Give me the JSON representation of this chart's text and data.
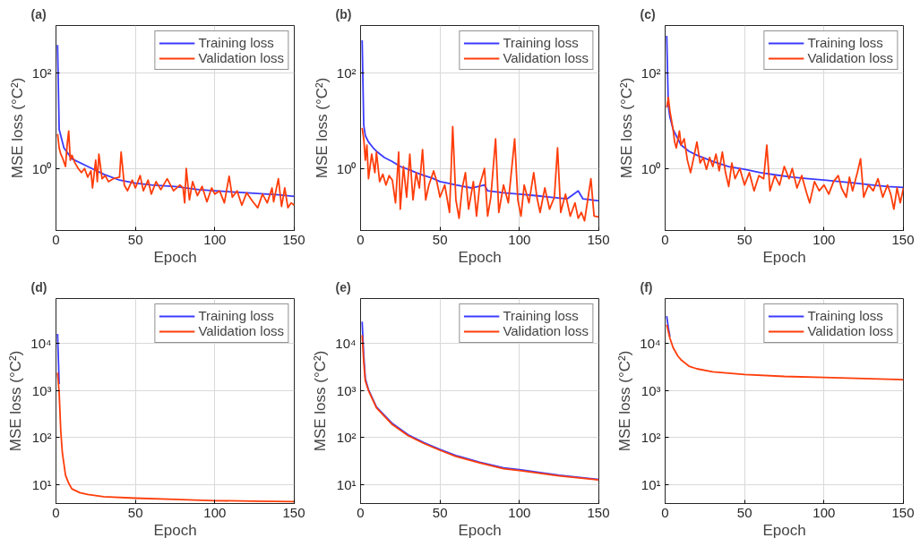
{
  "chart_data": [
    {
      "type": "line",
      "title": "(a)",
      "xlabel": "Epoch",
      "ylabel": "MSE loss (°C²)",
      "xlim": [
        0,
        150
      ],
      "xticks": [
        0,
        50,
        100,
        150
      ],
      "ylim": [
        0.05,
        1000
      ],
      "yticks": [
        {
          "value": 1,
          "label": "10⁰"
        },
        {
          "value": 100,
          "label": "10²"
        }
      ],
      "log": true,
      "grid": true,
      "legend": "top right",
      "series": [
        {
          "name": "Training loss",
          "color": "#3b3bff",
          "x": [
            1,
            2,
            5,
            10,
            20,
            30,
            40,
            50,
            60,
            75,
            90,
            100,
            120,
            140,
            150
          ],
          "values": [
            390,
            6.6,
            2.7,
            1.6,
            1.1,
            0.76,
            0.57,
            0.49,
            0.45,
            0.42,
            0.36,
            0.34,
            0.31,
            0.28,
            0.26
          ]
        },
        {
          "name": "Validation loss",
          "color": "#ff3d0a",
          "x": [
            1,
            2,
            3,
            4,
            6,
            7,
            8,
            9,
            10,
            12,
            14,
            16,
            18,
            20,
            22,
            23,
            25,
            26,
            27,
            29,
            31,
            33,
            36,
            40,
            41,
            43,
            45,
            48,
            50,
            53,
            55,
            58,
            60,
            63,
            66,
            70,
            74,
            78,
            80,
            81,
            82,
            84,
            86,
            89,
            92,
            95,
            98,
            100,
            103,
            106,
            108,
            109,
            111,
            114,
            117,
            120,
            124,
            127,
            130,
            133,
            136,
            137,
            140,
            142,
            144,
            146,
            148,
            150
          ],
          "values": [
            5.3,
            2.7,
            2.0,
            1.7,
            1.1,
            3.1,
            6.1,
            1.5,
            1.9,
            1.3,
            1.0,
            0.82,
            1.0,
            0.66,
            0.89,
            0.39,
            1.5,
            0.53,
            2.0,
            0.61,
            0.71,
            0.53,
            0.61,
            0.66,
            2.2,
            0.45,
            0.34,
            0.57,
            0.39,
            0.71,
            0.34,
            0.57,
            0.29,
            0.53,
            0.36,
            0.61,
            0.34,
            0.45,
            0.39,
            0.19,
            1.0,
            0.22,
            0.53,
            0.27,
            0.42,
            0.2,
            0.39,
            0.29,
            0.34,
            0.19,
            0.45,
            0.69,
            0.25,
            0.34,
            0.17,
            0.31,
            0.2,
            0.15,
            0.29,
            0.19,
            0.39,
            0.2,
            0.61,
            0.16,
            0.39,
            0.15,
            0.19,
            0.17
          ]
        }
      ]
    },
    {
      "type": "line",
      "title": "(b)",
      "xlabel": "Epoch",
      "ylabel": "MSE loss (°C²)",
      "xlim": [
        0,
        150
      ],
      "xticks": [
        0,
        50,
        100,
        150
      ],
      "ylim": [
        0.05,
        1000
      ],
      "yticks": [
        {
          "value": 1,
          "label": "10⁰"
        },
        {
          "value": 100,
          "label": "10²"
        }
      ],
      "log": true,
      "grid": true,
      "legend": "top right",
      "series": [
        {
          "name": "Training loss",
          "color": "#3b3bff",
          "x": [
            1,
            2,
            3,
            5,
            8,
            10,
            15,
            20,
            25,
            30,
            35,
            40,
            45,
            50,
            55,
            60,
            70,
            78,
            80,
            90,
            100,
            110,
            120,
            130,
            137,
            140,
            150
          ],
          "values": [
            490,
            8.2,
            4.9,
            3.6,
            2.7,
            2.3,
            1.7,
            1.4,
            1.1,
            0.96,
            0.82,
            0.71,
            0.63,
            0.53,
            0.49,
            0.45,
            0.39,
            0.45,
            0.34,
            0.31,
            0.29,
            0.27,
            0.25,
            0.23,
            0.34,
            0.23,
            0.21
          ]
        },
        {
          "name": "Validation loss",
          "color": "#ff3d0a",
          "x": [
            1,
            2,
            3,
            4,
            5,
            7,
            9,
            10,
            12,
            14,
            16,
            18,
            20,
            22,
            24,
            25,
            27,
            29,
            31,
            33,
            35,
            37,
            39,
            41,
            43,
            46,
            48,
            50,
            53,
            56,
            58,
            60,
            62,
            64,
            66,
            68,
            71,
            73,
            75,
            78,
            80,
            82,
            85,
            87,
            90,
            93,
            97,
            99,
            101,
            103,
            106,
            109,
            111,
            113,
            116,
            119,
            122,
            124,
            126,
            129,
            132,
            135,
            137,
            139,
            141,
            143,
            145,
            147,
            150
          ],
          "values": [
            7.1,
            4.2,
            1.5,
            3.1,
            0.61,
            2.0,
            0.82,
            2.2,
            0.53,
            0.76,
            0.45,
            0.71,
            0.57,
            0.19,
            2.2,
            0.14,
            1.1,
            0.25,
            2.0,
            0.22,
            0.82,
            0.39,
            2.5,
            0.22,
            0.45,
            0.89,
            0.53,
            0.25,
            0.45,
            0.12,
            7.6,
            0.22,
            0.09,
            0.39,
            0.82,
            0.14,
            0.53,
            0.1,
            0.45,
            1.0,
            0.1,
            0.25,
            4.2,
            0.12,
            0.45,
            0.19,
            4.2,
            0.22,
            0.1,
            0.45,
            0.19,
            0.82,
            0.25,
            0.12,
            0.39,
            0.14,
            0.25,
            2.7,
            0.12,
            0.29,
            0.1,
            0.19,
            0.09,
            0.12,
            0.08,
            0.22,
            0.61,
            0.1,
            0.096
          ]
        }
      ]
    },
    {
      "type": "line",
      "title": "(c)",
      "xlabel": "Epoch",
      "ylabel": "MSE loss (°C²)",
      "xlim": [
        0,
        150
      ],
      "xticks": [
        0,
        50,
        100,
        150
      ],
      "ylim": [
        0.05,
        1000
      ],
      "yticks": [
        {
          "value": 1,
          "label": "10⁰"
        },
        {
          "value": 100,
          "label": "10²"
        }
      ],
      "log": true,
      "grid": true,
      "legend": "top right",
      "series": [
        {
          "name": "Training loss",
          "color": "#3b3bff",
          "x": [
            1,
            2,
            3,
            5,
            8,
            10,
            15,
            20,
            30,
            40,
            50,
            60,
            70,
            80,
            90,
            100,
            110,
            120,
            130,
            140,
            150
          ],
          "values": [
            610,
            21,
            12,
            6.6,
            4.2,
            3.1,
            2.3,
            1.9,
            1.4,
            1.1,
            0.96,
            0.82,
            0.73,
            0.66,
            0.61,
            0.57,
            0.53,
            0.49,
            0.45,
            0.42,
            0.4
          ]
        },
        {
          "name": "Validation loss",
          "color": "#ff3d0a",
          "x": [
            1,
            2,
            3,
            5,
            6,
            7,
            9,
            10,
            12,
            14,
            16,
            18,
            20,
            22,
            24,
            26,
            28,
            30,
            32,
            34,
            36,
            38,
            40,
            42,
            44,
            47,
            50,
            53,
            56,
            59,
            62,
            64,
            66,
            69,
            72,
            75,
            78,
            80,
            83,
            86,
            89,
            91,
            94,
            97,
            100,
            103,
            106,
            109,
            111,
            114,
            116,
            118,
            121,
            123,
            125,
            128,
            131,
            134,
            137,
            140,
            142,
            144,
            146,
            148,
            150
          ],
          "values": [
            19,
            31,
            16,
            6.6,
            3.6,
            2.7,
            6.1,
            3.1,
            4.2,
            1.5,
            0.82,
            1.7,
            3.6,
            1.3,
            1.7,
            0.96,
            1.7,
            1.1,
            2.0,
            0.89,
            2.2,
            0.82,
            0.42,
            1.3,
            0.61,
            1.0,
            0.45,
            0.82,
            0.34,
            0.71,
            0.61,
            3.1,
            0.34,
            0.71,
            0.45,
            1.1,
            0.61,
            1.0,
            0.39,
            0.71,
            0.31,
            0.19,
            0.53,
            0.34,
            0.45,
            0.29,
            0.53,
            0.71,
            0.39,
            0.25,
            0.66,
            0.34,
            0.82,
            1.6,
            0.25,
            0.45,
            0.34,
            0.61,
            0.25,
            0.45,
            0.29,
            0.14,
            0.39,
            0.19,
            0.39
          ]
        }
      ]
    },
    {
      "type": "line",
      "title": "(d)",
      "xlabel": "Epoch",
      "ylabel": "MSE loss (°C²)",
      "xlim": [
        0,
        150
      ],
      "xticks": [
        0,
        50,
        100,
        150
      ],
      "ylim": [
        4,
        90000
      ],
      "yticks": [
        {
          "value": 10,
          "label": "10¹"
        },
        {
          "value": 100,
          "label": "10²"
        },
        {
          "value": 1000,
          "label": "10³"
        },
        {
          "value": 10000,
          "label": "10⁴"
        }
      ],
      "log": true,
      "grid": true,
      "legend": "top right",
      "series": [
        {
          "name": "Training loss",
          "color": "#3b3bff",
          "x": [
            1,
            2
          ],
          "values": [
            16000,
            1370
          ]
        },
        {
          "name": "Validation loss",
          "color": "#ff3d0a",
          "x": [
            1,
            2,
            3,
            4,
            5,
            6,
            8,
            10,
            15,
            20,
            30,
            50,
            75,
            100,
            125,
            150
          ],
          "values": [
            2400,
            900,
            140,
            48,
            28,
            16,
            10.8,
            8.2,
            6.8,
            6.25,
            5.6,
            5.2,
            4.9,
            4.6,
            4.5,
            4.4
          ]
        }
      ]
    },
    {
      "type": "line",
      "title": "(e)",
      "xlabel": "Epoch",
      "ylabel": "MSE loss (°C²)",
      "xlim": [
        0,
        150
      ],
      "xticks": [
        0,
        50,
        100,
        150
      ],
      "ylim": [
        4,
        90000
      ],
      "yticks": [
        {
          "value": 10,
          "label": "10¹"
        },
        {
          "value": 100,
          "label": "10²"
        },
        {
          "value": 1000,
          "label": "10³"
        },
        {
          "value": 10000,
          "label": "10⁴"
        }
      ],
      "log": true,
      "grid": true,
      "legend": "top right",
      "series": [
        {
          "name": "Training loss",
          "color": "#3b3bff",
          "x": [
            1,
            2,
            3,
            5,
            10,
            20,
            30,
            40,
            50,
            60,
            75,
            90,
            100,
            125,
            150
          ],
          "values": [
            29000,
            5500,
            1800,
            1040,
            450,
            200,
            115,
            78,
            56,
            42,
            30,
            23,
            21,
            16,
            13
          ]
        },
        {
          "name": "Validation loss",
          "color": "#ff3d0a",
          "x": [
            1,
            2,
            3,
            5,
            10,
            20,
            30,
            40,
            50,
            60,
            75,
            90,
            100,
            125,
            150
          ],
          "values": [
            15000,
            4000,
            1600,
            1000,
            430,
            190,
            110,
            75,
            54,
            40,
            29,
            22,
            20,
            15.5,
            12.7
          ]
        }
      ]
    },
    {
      "type": "line",
      "title": "(f)",
      "xlabel": "Epoch",
      "ylabel": "MSE loss (°C²)",
      "xlim": [
        0,
        150
      ],
      "xticks": [
        0,
        50,
        100,
        150
      ],
      "ylim": [
        4,
        90000
      ],
      "yticks": [
        {
          "value": 10,
          "label": "10¹"
        },
        {
          "value": 100,
          "label": "10²"
        },
        {
          "value": 1000,
          "label": "10³"
        },
        {
          "value": 10000,
          "label": "10⁴"
        }
      ],
      "log": true,
      "grid": true,
      "legend": "top right",
      "series": [
        {
          "name": "Training loss",
          "color": "#3b3bff",
          "x": [
            1,
            2,
            3
          ],
          "values": [
            38000,
            21500,
            14000
          ]
        },
        {
          "name": "Validation loss",
          "color": "#ff3d0a",
          "x": [
            1,
            2,
            3,
            5,
            8,
            10,
            15,
            20,
            30,
            50,
            75,
            100,
            125,
            150
          ],
          "values": [
            25000,
            18000,
            13000,
            8200,
            5400,
            4500,
            3300,
            2900,
            2500,
            2200,
            2000,
            1900,
            1800,
            1700
          ]
        }
      ]
    }
  ]
}
